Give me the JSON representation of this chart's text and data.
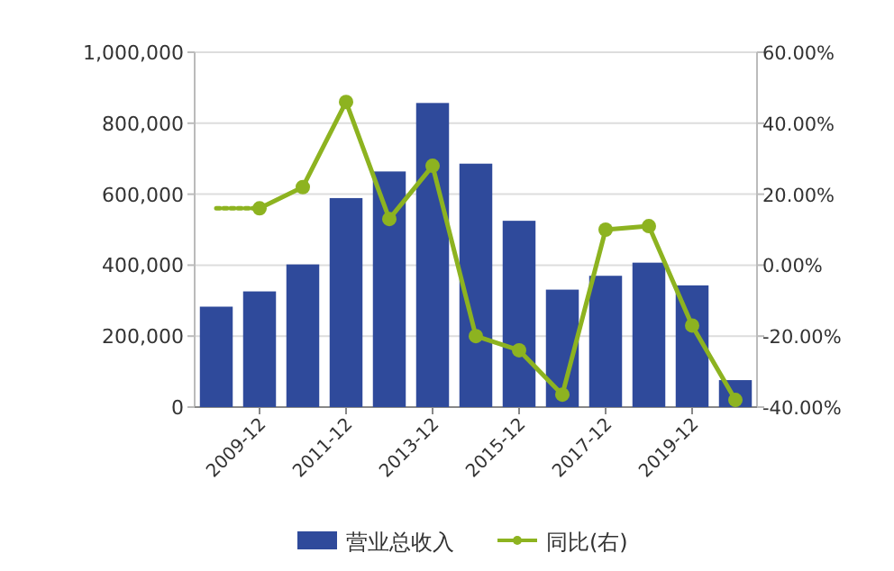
{
  "chart_data": {
    "type": "bar",
    "categories": [
      null,
      "2009-12",
      null,
      "2011-12",
      null,
      "2013-12",
      null,
      "2015-12",
      null,
      "2017-12",
      null,
      "2019-12",
      null
    ],
    "series": [
      {
        "name": "营业总收入",
        "color": "#2f4a9b",
        "values": [
          283000,
          326000,
          402000,
          589000,
          664000,
          857000,
          686000,
          525000,
          331000,
          370000,
          407000,
          343000,
          76000
        ]
      },
      {
        "type": "line",
        "axis": "y2",
        "color": "#8db320",
        "line_style": "dotted",
        "values": [
          16,
          16,
          null,
          null,
          null,
          null,
          null,
          null,
          null,
          null,
          null,
          null,
          null
        ]
      },
      {
        "name": "同比(右)",
        "type": "line",
        "axis": "y2",
        "color": "#8db320",
        "line_style": "solid",
        "marker": "circle",
        "values": [
          null,
          16,
          22,
          46,
          13,
          28,
          -20,
          -24,
          -36.5,
          10,
          11,
          -17,
          -38
        ]
      }
    ],
    "ylim": [
      0,
      1000000
    ],
    "yticks": [
      {
        "value": 0,
        "label": "0"
      },
      {
        "value": 200000,
        "label": "200,000"
      },
      {
        "value": 400000,
        "label": "400,000"
      },
      {
        "value": 600000,
        "label": "600,000"
      },
      {
        "value": 800000,
        "label": "800,000"
      },
      {
        "value": 1000000,
        "label": "1,000,000"
      }
    ],
    "y2lim": [
      -40,
      60
    ],
    "y2ticks": [
      {
        "value": -40,
        "label": "-40.00%"
      },
      {
        "value": -20,
        "label": "-20.00%"
      },
      {
        "value": 0,
        "label": "0.00%"
      },
      {
        "value": 20,
        "label": "20.00%"
      },
      {
        "value": 40,
        "label": "40.00%"
      },
      {
        "value": 60,
        "label": "60.00%"
      }
    ],
    "grid": "y",
    "legend": "bottom"
  }
}
